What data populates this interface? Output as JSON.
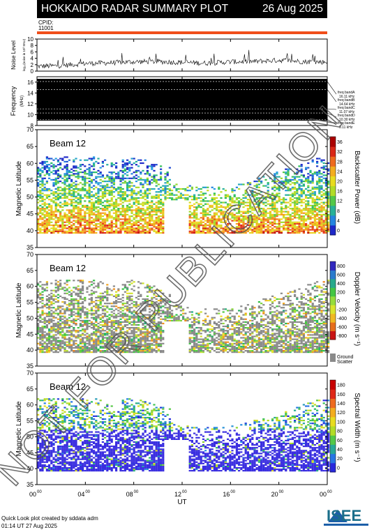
{
  "header": {
    "title": "HOKKAIDO RADAR SUMMARY PLOT",
    "date": "26 Aug 2025"
  },
  "cpid": {
    "label": "CPID:",
    "value": "11001"
  },
  "noise_panel": {
    "ylabel": "Noise Level",
    "ylabel2": "log₁₀(noise in 10³ SNU)",
    "yticks": [
      "0",
      "2",
      "4",
      "6",
      "8",
      "10"
    ]
  },
  "freq_panel": {
    "ylabel": "Frequency",
    "unit": "(MHz)",
    "yticks": [
      "8",
      "10",
      "12",
      "14",
      "16"
    ],
    "bands": [
      {
        "name": "freq bandA",
        "freq": "16.11 kHz"
      },
      {
        "name": "freq bandB",
        "freq": "14.64 kHz"
      },
      {
        "name": "freq bandC",
        "freq": "11.07 kHz"
      },
      {
        "name": "freq bandD",
        "freq": "10.30 kHz"
      },
      {
        "name": "freq bandE",
        "freq": "9.11 kHz"
      }
    ]
  },
  "panels": [
    {
      "beam": "Beam 12",
      "ylabel": "Magnetic Latitude",
      "cbar_label": "Backscatter Power (dB)",
      "cbar_ticks": [
        "0",
        "4",
        "8",
        "12",
        "16",
        "20",
        "24",
        "28",
        "32",
        "36"
      ]
    },
    {
      "beam": "Beam 12",
      "ylabel": "Magnetic Latitude",
      "cbar_label": "Doppler Velocity (m s⁻¹)",
      "cbar_ticks": [
        "-800",
        "-600",
        "-400",
        "-200",
        "0",
        "200",
        "400",
        "600",
        "800"
      ],
      "ground_label": "Ground",
      "ground_label2": "Scatter"
    },
    {
      "beam": "Beam 12",
      "ylabel": "Magnetic Latitude",
      "cbar_label": "Spectral Width (m s⁻¹)",
      "cbar_ticks": [
        "0",
        "20",
        "40",
        "60",
        "80",
        "100",
        "120",
        "140",
        "160",
        "180"
      ]
    }
  ],
  "lat_ticks": [
    "35",
    "40",
    "45",
    "50",
    "55",
    "60",
    "65",
    "70"
  ],
  "time_ticks": [
    "00",
    "04",
    "08",
    "12",
    "16",
    "20",
    "00"
  ],
  "time_tick_sup": "00",
  "xlabel": "UT",
  "watermark": "NOT FOR PUBLICATION",
  "credit": {
    "line1": "Quick Look plot created by sddata adm",
    "line2": "01:14 UT 27 Aug 2025"
  },
  "logo": "ISEE",
  "colors": {
    "orange_bar": "#f04e1a",
    "ground_scatter": "#8a8a8a"
  },
  "chart_data": [
    {
      "type": "line",
      "title": "Noise Level",
      "xlabel": "UT",
      "ylim": [
        0,
        10
      ],
      "x": [
        0,
        2,
        4,
        6,
        8,
        10,
        12,
        14,
        16,
        18,
        20,
        22,
        24
      ],
      "series": [
        {
          "values": [
            1.5,
            1.7,
            2.4,
            2.6,
            2.9,
            3.0,
            2.7,
            2.5,
            2.9,
            3.0,
            3.4,
            3.0,
            2.8
          ]
        }
      ]
    },
    {
      "type": "heatmap",
      "title": "Frequency",
      "ylim": [
        8,
        17
      ],
      "freq_bands_mhz": [
        16.11,
        14.64,
        11.07,
        10.3,
        9.11
      ]
    },
    {
      "type": "heatmap",
      "title": "Beam 12 Backscatter Power (dB)",
      "xlim": [
        0,
        24
      ],
      "ylim": [
        35,
        70
      ],
      "zlim": [
        0,
        36
      ],
      "occupied_lat_range": [
        39,
        62
      ]
    },
    {
      "type": "heatmap",
      "title": "Beam 12 Doppler Velocity (m s⁻¹)",
      "xlim": [
        0,
        24
      ],
      "ylim": [
        35,
        70
      ],
      "zlim": [
        -800,
        800
      ],
      "occupied_lat_range": [
        39,
        62
      ]
    },
    {
      "type": "heatmap",
      "title": "Beam 12 Spectral Width (m s⁻¹)",
      "xlim": [
        0,
        24
      ],
      "ylim": [
        35,
        70
      ],
      "zlim": [
        0,
        180
      ],
      "occupied_lat_range": [
        39,
        62
      ]
    }
  ]
}
